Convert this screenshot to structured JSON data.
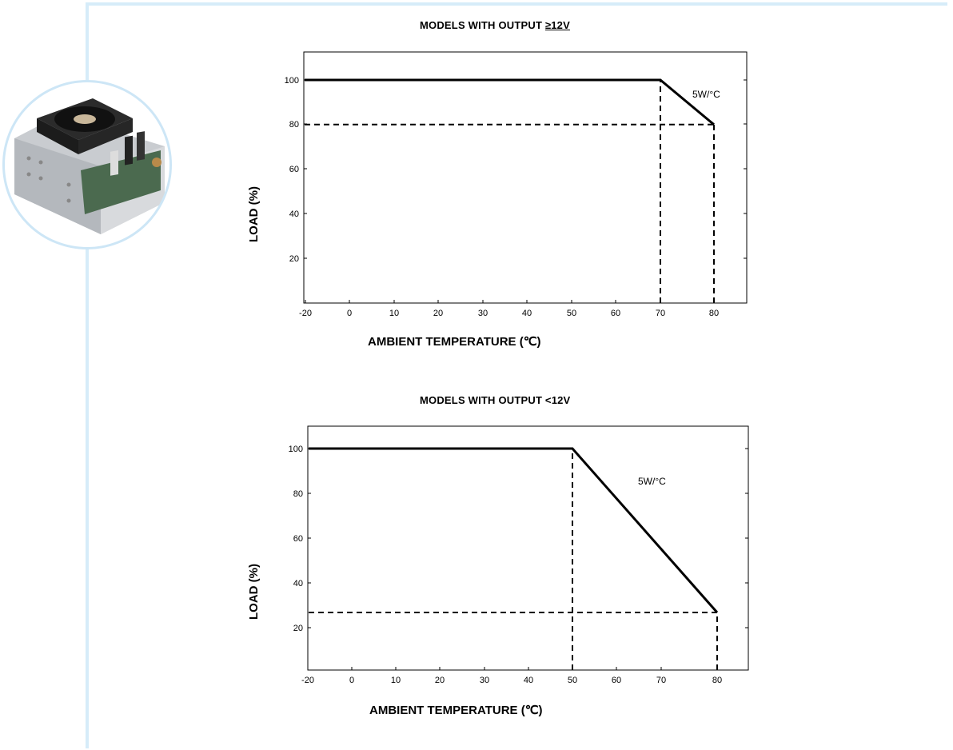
{
  "chart_data": [
    {
      "type": "line",
      "title_prefix": "MODELS WITH OUTPUT ",
      "title_symbol": "≥12V",
      "xlabel": "AMBIENT TEMPERATURE (℃)",
      "ylabel": "LOAD (%)",
      "xlim": [
        -20,
        80
      ],
      "ylim": [
        0,
        110
      ],
      "x_ticks": [
        "-20",
        "0",
        "10",
        "20",
        "30",
        "40",
        "50",
        "60",
        "70",
        "80"
      ],
      "y_ticks": [
        "100",
        "80",
        "60",
        "40",
        "20"
      ],
      "series": [
        {
          "x": [
            -20,
            70,
            80
          ],
          "y": [
            100,
            100,
            80
          ]
        }
      ],
      "guides": [
        {
          "from": [
            -20,
            80
          ],
          "to": [
            80,
            80
          ]
        },
        {
          "from": [
            70,
            0
          ],
          "to": [
            70,
            100
          ]
        },
        {
          "from": [
            80,
            0
          ],
          "to": [
            80,
            80
          ]
        }
      ],
      "annotation": "5W/°C"
    },
    {
      "type": "line",
      "title_prefix": "MODELS WITH OUTPUT <12V",
      "title_symbol": "",
      "xlabel": "AMBIENT TEMPERATURE (℃)",
      "ylabel": "LOAD (%)",
      "xlim": [
        -20,
        80
      ],
      "ylim": [
        0,
        110
      ],
      "x_ticks": [
        "-20",
        "0",
        "10",
        "20",
        "30",
        "40",
        "50",
        "60",
        "70",
        "80"
      ],
      "y_ticks": [
        "100",
        "80",
        "60",
        "40",
        "20"
      ],
      "series": [
        {
          "x": [
            -20,
            50,
            80
          ],
          "y": [
            100,
            100,
            26
          ]
        }
      ],
      "guides": [
        {
          "from": [
            -20,
            26
          ],
          "to": [
            80,
            26
          ]
        },
        {
          "from": [
            50,
            0
          ],
          "to": [
            50,
            100
          ]
        },
        {
          "from": [
            80,
            0
          ],
          "to": [
            80,
            26
          ]
        }
      ],
      "annotation": "5W/°C"
    }
  ],
  "colors": {
    "frame": "#d6ecf9",
    "ink": "#000000"
  },
  "image": {
    "subject": "power-supply-unit-photo"
  }
}
